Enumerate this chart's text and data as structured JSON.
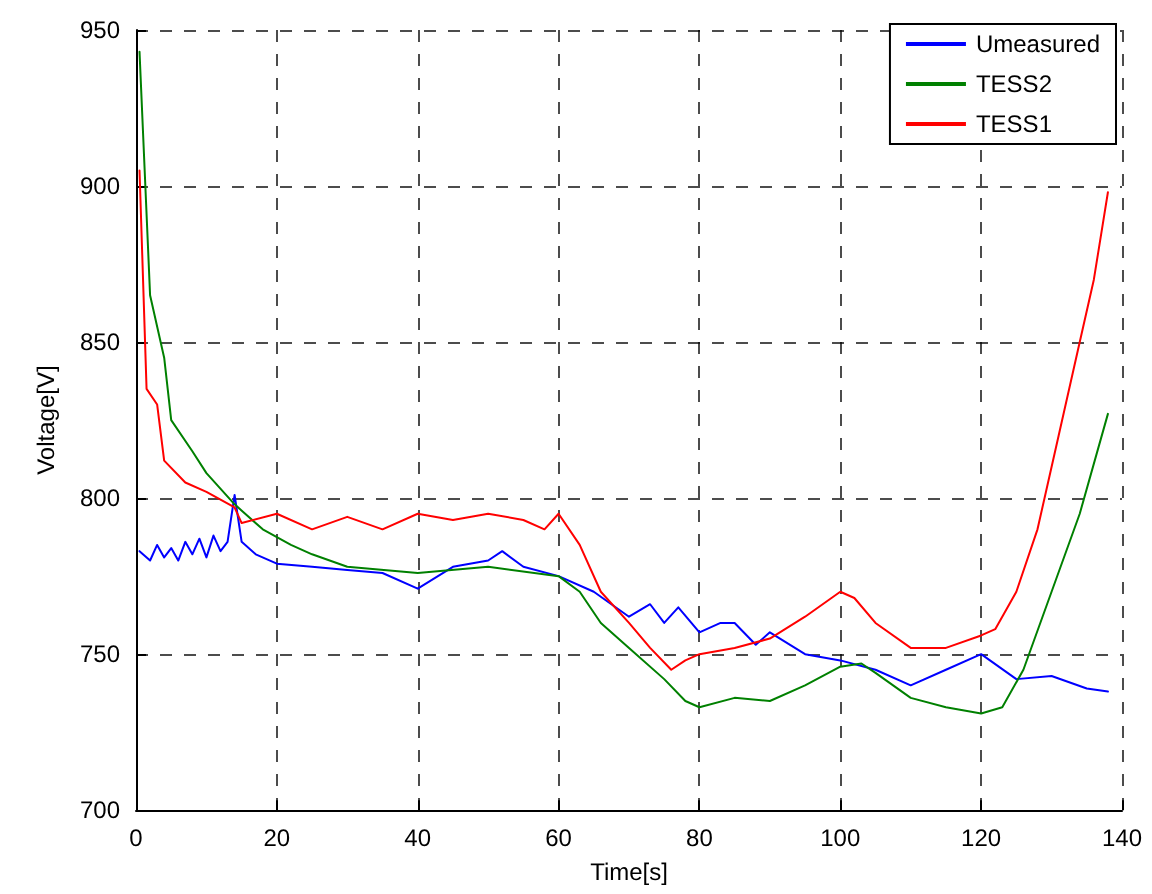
{
  "chart_data": {
    "type": "line",
    "xlabel": "Time[s]",
    "ylabel": "Voltage[V]",
    "xlim": [
      0,
      140
    ],
    "xticks": [
      0,
      20,
      40,
      60,
      80,
      100,
      120,
      140
    ],
    "ylim": [
      700,
      950
    ],
    "yticks": [
      700,
      750,
      800,
      850,
      900,
      950
    ],
    "grid": true,
    "legend": "top right",
    "marker": "none",
    "line_style": "solid",
    "series": [
      {
        "name": "Umeasured",
        "color": "#0000ff",
        "x": [
          0.5,
          2,
          3,
          4,
          5,
          6,
          7,
          8,
          9,
          10,
          11,
          12,
          13,
          14,
          15,
          17,
          20,
          25,
          30,
          35,
          40,
          45,
          50,
          52,
          55,
          60,
          65,
          70,
          73,
          75,
          77,
          80,
          83,
          85,
          88,
          90,
          95,
          100,
          105,
          110,
          115,
          120,
          125,
          130,
          135,
          138
        ],
        "values": [
          783,
          780,
          785,
          781,
          784,
          780,
          786,
          782,
          787,
          781,
          788,
          783,
          786,
          801,
          786,
          782,
          779,
          778,
          777,
          776,
          771,
          778,
          780,
          783,
          778,
          775,
          770,
          762,
          766,
          760,
          765,
          757,
          760,
          760,
          753,
          757,
          750,
          748,
          745,
          740,
          745,
          750,
          742,
          743,
          739,
          738
        ]
      },
      {
        "name": "TESS2",
        "color": "#008000",
        "x": [
          0.5,
          2,
          4,
          5,
          8,
          10,
          14,
          18,
          22,
          25,
          30,
          40,
          50,
          60,
          63,
          66,
          70,
          75,
          78,
          80,
          85,
          90,
          95,
          100,
          103,
          105,
          110,
          115,
          120,
          123,
          126,
          130,
          134,
          138
        ],
        "values": [
          943,
          865,
          845,
          825,
          815,
          808,
          798,
          790,
          785,
          782,
          778,
          776,
          778,
          775,
          770,
          760,
          752,
          742,
          735,
          733,
          736,
          735,
          740,
          746,
          747,
          744,
          736,
          733,
          731,
          733,
          745,
          770,
          795,
          827
        ]
      },
      {
        "name": "TESS1",
        "color": "#ff0000",
        "x": [
          0.5,
          1.5,
          3,
          4,
          7,
          10,
          14,
          15,
          20,
          25,
          30,
          35,
          40,
          45,
          50,
          55,
          58,
          60,
          63,
          66,
          70,
          73,
          76,
          78,
          80,
          85,
          90,
          95,
          100,
          102,
          105,
          110,
          115,
          120,
          122,
          125,
          128,
          131,
          134,
          136,
          138
        ],
        "values": [
          905,
          835,
          830,
          812,
          805,
          802,
          797,
          792,
          795,
          790,
          794,
          790,
          795,
          793,
          795,
          793,
          790,
          795,
          785,
          770,
          760,
          752,
          745,
          748,
          750,
          752,
          755,
          762,
          770,
          768,
          760,
          752,
          752,
          756,
          758,
          770,
          790,
          820,
          850,
          870,
          898
        ]
      }
    ]
  }
}
